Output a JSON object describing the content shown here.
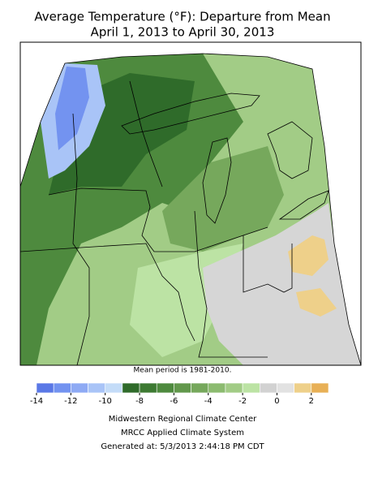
{
  "title": [
    "Average Temperature (°F): Departure from Mean",
    "April 1, 2013 to April 30, 2013"
  ],
  "map_note": "Mean period is 1981-2010.",
  "legend": {
    "range": [
      -14,
      3
    ],
    "ticks": [
      -14,
      -12,
      -10,
      -8,
      -6,
      -4,
      -2,
      0,
      2
    ],
    "colors": [
      "#5a78e6",
      "#7393f0",
      "#8eaaf4",
      "#a9c4f7",
      "#c4dcf8",
      "#2f6b2a",
      "#3d7a32",
      "#4e8a3e",
      "#62984c",
      "#76a85c",
      "#8cbb70",
      "#a2cc86",
      "#bce3a4",
      "#d2d2d2",
      "#e2e2e2",
      "#eed08a",
      "#e8b056"
    ]
  },
  "footer": [
    "Midwestern Regional Climate Center",
    "MRCC Applied Climate System",
    "Generated at: 5/3/2013 2:44:18 PM CDT"
  ]
}
